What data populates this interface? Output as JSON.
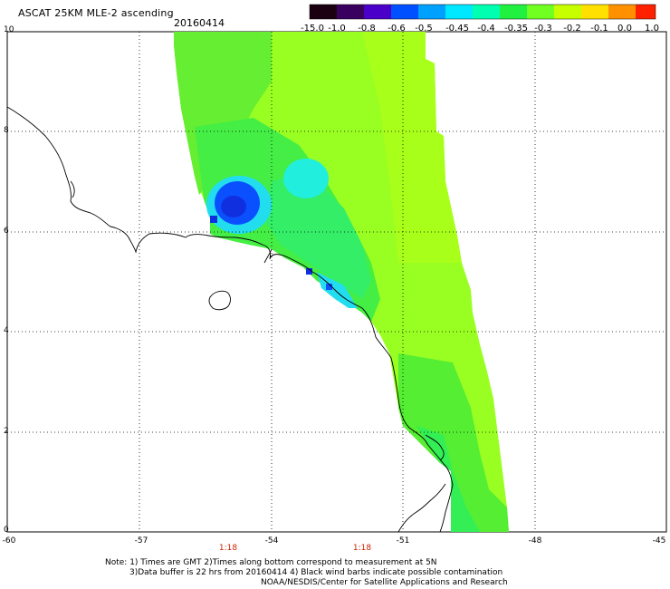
{
  "header": {
    "title": "ASCAT 25KM MLE-2 ascending",
    "date": "20160414"
  },
  "colorbar": {
    "labels": [
      "-15.0",
      "-1.0",
      "-0.8",
      "-0.6",
      "-0.5",
      "-0.45",
      "-0.4",
      "-0.35",
      "-0.3",
      "-0.2",
      "-0.1",
      "0.0",
      "1.0"
    ],
    "colors": [
      "#1a0010",
      "#3a0060",
      "#4a00c8",
      "#0050ff",
      "#00a0ff",
      "#00e8ff",
      "#00ffb0",
      "#20f040",
      "#70ff20",
      "#c8ff00",
      "#ffe000",
      "#ff9000",
      "#ff2000"
    ]
  },
  "axes": {
    "lat_labels": [
      "10",
      "8",
      "6",
      "4",
      "2",
      "0"
    ],
    "lon_labels": [
      "-60",
      "-57",
      "-54",
      "-51",
      "-48",
      "-45"
    ]
  },
  "times": [
    "1:18",
    "1:18"
  ],
  "notes": {
    "line1": "Note: 1) Times are GMT 2)Times along bottom correspond to measurement at 5N",
    "line2": "3)Data buffer is 22 hrs from 20160414 4) Black wind barbs indicate possible contamination",
    "line3": "NOAA/NESDIS/Center for Satellite Applications and Research"
  },
  "map_colors": {
    "swath_light": "#99ff22",
    "swath_mid": "#55ee33",
    "swath_green": "#33ee55",
    "cyan": "#22eeee",
    "blue": "#0a50ff",
    "dark_blue": "#1030e0"
  }
}
